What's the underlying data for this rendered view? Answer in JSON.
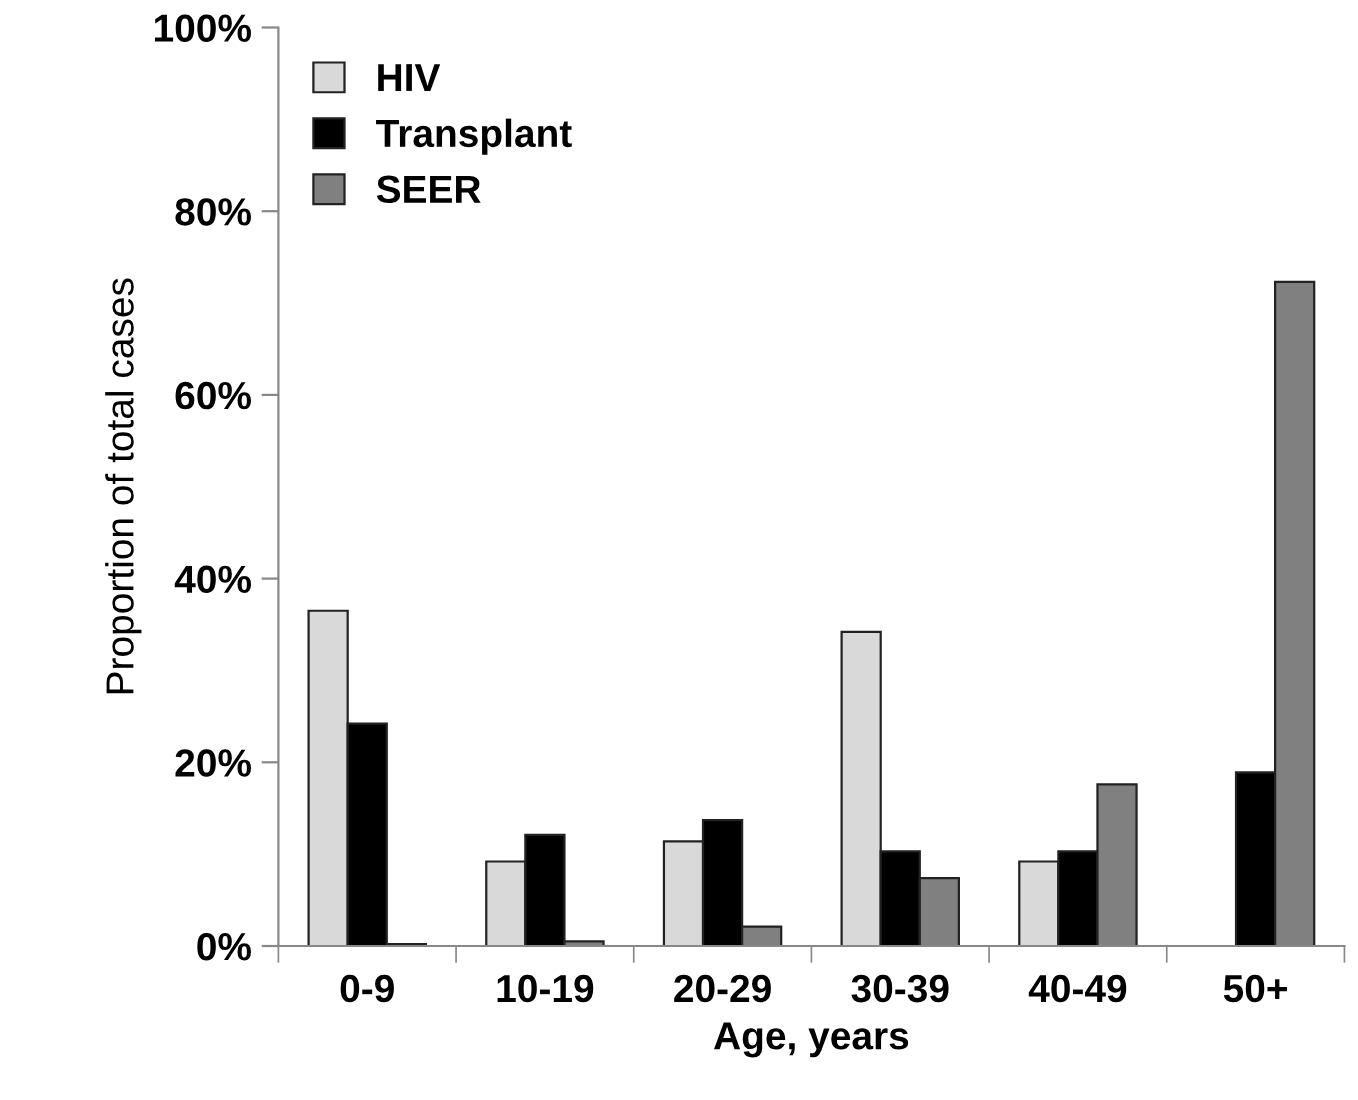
{
  "chart_data": {
    "type": "bar",
    "xlabel": "Age, years",
    "ylabel": "Proportion of total cases",
    "categories": [
      "0-9",
      "10-19",
      "20-29",
      "30-39",
      "40-49",
      "50+"
    ],
    "series": [
      {
        "name": "HIV",
        "color": "#d9d9d9",
        "values": [
          36.5,
          9.2,
          11.4,
          34.2,
          9.2,
          null
        ]
      },
      {
        "name": "Transplant",
        "color": "#000000",
        "values": [
          24.2,
          12.1,
          13.7,
          10.3,
          10.3,
          18.9
        ]
      },
      {
        "name": "SEER",
        "color": "#808080",
        "values": [
          0.2,
          0.5,
          2.1,
          7.4,
          17.6,
          72.3
        ]
      }
    ],
    "ylim": [
      0,
      100
    ],
    "yticks": [
      {
        "value": 0,
        "label": "0%"
      },
      {
        "value": 20,
        "label": "20%"
      },
      {
        "value": 40,
        "label": "40%"
      },
      {
        "value": 60,
        "label": "60%"
      },
      {
        "value": 80,
        "label": "80%"
      },
      {
        "value": 100,
        "label": "100%"
      }
    ],
    "grid": false,
    "legend": "top left"
  }
}
